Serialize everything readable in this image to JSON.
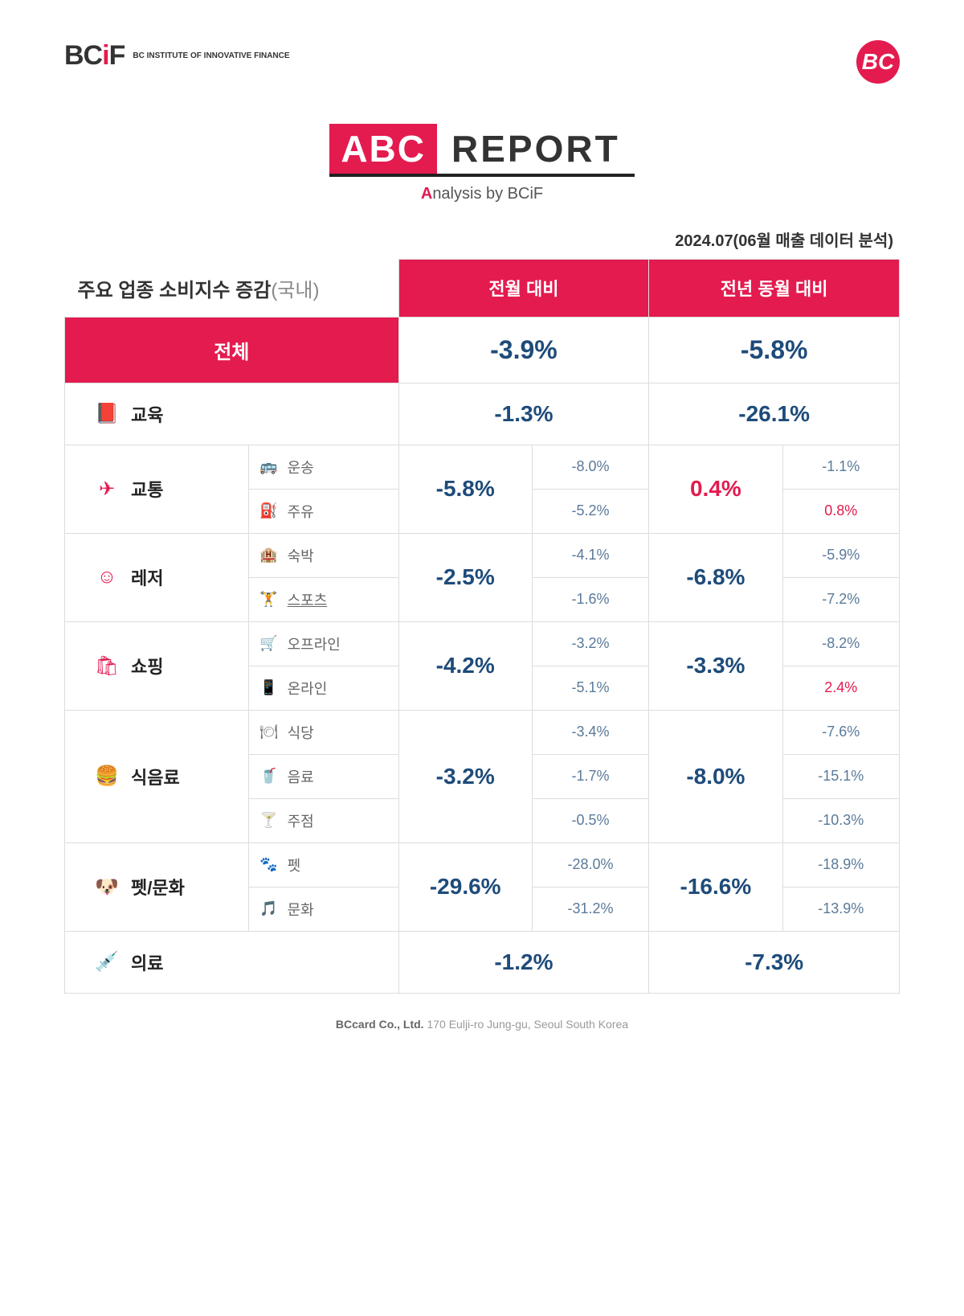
{
  "colors": {
    "accent": "#e31b4f",
    "negative": "#1e4b7a",
    "positive": "#e31b4f"
  },
  "logo": {
    "text": "BCiF",
    "subtitle": "BC INSTITUTE OF\nINNOVATIVE\nFINANCE",
    "right": "BC"
  },
  "title": {
    "abc": "ABC",
    "report": "REPORT",
    "sub_a": "A",
    "sub_rest": "nalysis by BCiF"
  },
  "date_line": "2024.07(06월 매출 데이터 분석)",
  "table_header": {
    "left_main": "주요 업종 소비지수 증감",
    "left_dim": "(국내)",
    "col1": "전월 대비",
    "col2": "전년 동월 대비"
  },
  "total": {
    "label": "전체",
    "mom": "-3.9%",
    "yoy": "-5.8%"
  },
  "categories": [
    {
      "icon": "📕",
      "name": "교육",
      "mom": "-1.3%",
      "yoy": "-26.1%",
      "subs": []
    },
    {
      "icon": "✈",
      "name": "교통",
      "mom": "-5.8%",
      "yoy": "0.4%",
      "yoy_pos": true,
      "subs": [
        {
          "icon": "🚌",
          "name": "운송",
          "mom": "-8.0%",
          "yoy": "-1.1%"
        },
        {
          "icon": "⛽",
          "name": "주유",
          "mom": "-5.2%",
          "yoy": "0.8%",
          "yoy_pos": true
        }
      ]
    },
    {
      "icon": "☺",
      "name": "레저",
      "mom": "-2.5%",
      "yoy": "-6.8%",
      "subs": [
        {
          "icon": "🏨",
          "name": "숙박",
          "mom": "-4.1%",
          "yoy": "-5.9%"
        },
        {
          "icon": "🏋",
          "name": "스포츠",
          "underline": true,
          "mom": "-1.6%",
          "yoy": "-7.2%"
        }
      ]
    },
    {
      "icon": "🛍",
      "name": "쇼핑",
      "mom": "-4.2%",
      "yoy": "-3.3%",
      "subs": [
        {
          "icon": "🛒",
          "name": "오프라인",
          "mom": "-3.2%",
          "yoy": "-8.2%"
        },
        {
          "icon": "📱",
          "name": "온라인",
          "mom": "-5.1%",
          "yoy": "2.4%",
          "yoy_pos": true
        }
      ]
    },
    {
      "icon": "🍔",
      "name": "식음료",
      "mom": "-3.2%",
      "yoy": "-8.0%",
      "subs": [
        {
          "icon": "🍽",
          "name": "식당",
          "mom": "-3.4%",
          "yoy": "-7.6%"
        },
        {
          "icon": "🥤",
          "name": "음료",
          "mom": "-1.7%",
          "yoy": "-15.1%"
        },
        {
          "icon": "🍸",
          "name": "주점",
          "mom": "-0.5%",
          "yoy": "-10.3%"
        }
      ]
    },
    {
      "icon": "🐶",
      "name": "펫/문화",
      "mom": "-29.6%",
      "yoy": "-16.6%",
      "subs": [
        {
          "icon": "🐾",
          "name": "펫",
          "mom": "-28.0%",
          "yoy": "-18.9%"
        },
        {
          "icon": "🎵",
          "name": "문화",
          "mom": "-31.2%",
          "yoy": "-13.9%"
        }
      ]
    },
    {
      "icon": "💉",
      "name": "의료",
      "mom": "-1.2%",
      "yoy": "-7.3%",
      "subs": []
    }
  ],
  "footer": {
    "bold": "BCcard Co., Ltd.",
    "rest": " 170 Eulji-ro Jung-gu, Seoul South Korea"
  }
}
